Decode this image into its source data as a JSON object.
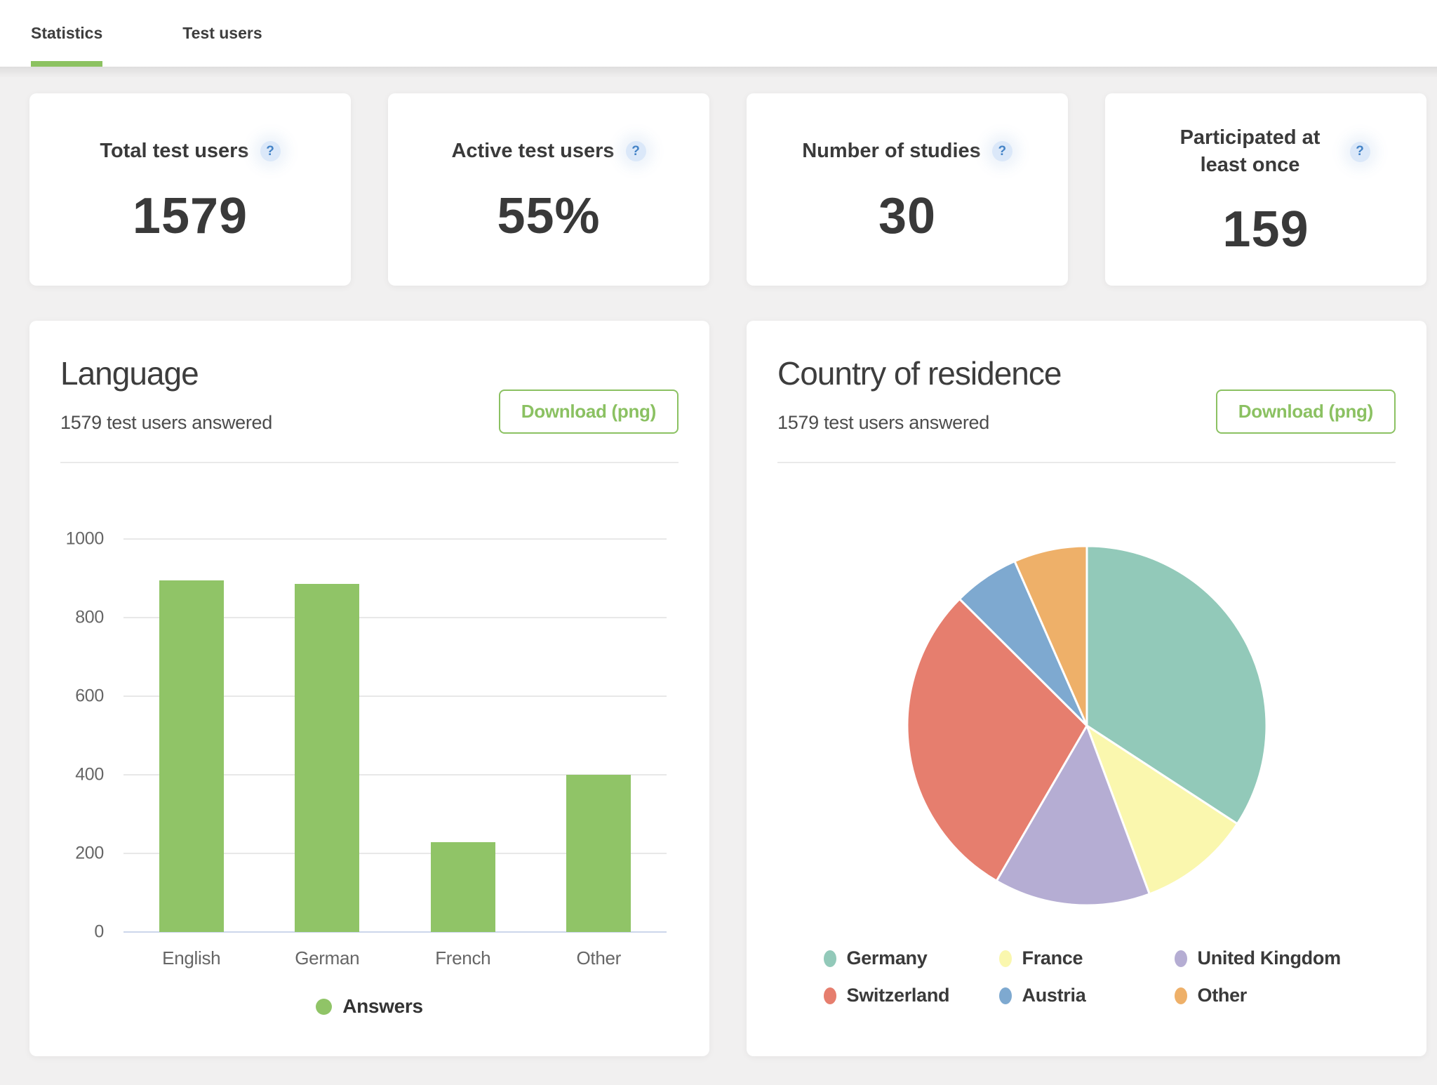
{
  "header": {
    "tabs": [
      {
        "label": "Statistics",
        "active": true
      },
      {
        "label": "Test users",
        "active": false
      }
    ]
  },
  "icons": {
    "help": "?"
  },
  "colors": {
    "accent_green": "#8cc261",
    "bar_green": "#90c467",
    "button_green": "#8bc162",
    "help_badge_bg": "#dbe8f9",
    "help_badge_fg": "#4584c7",
    "page_bg": "#f1f0f0",
    "axis_line": "#ccd6eb",
    "gridline": "#e8e8e8"
  },
  "stats_cards": [
    {
      "title": "Total test users",
      "value": "1579"
    },
    {
      "title": "Active test users",
      "value": "55%"
    },
    {
      "title": "Number of studies",
      "value": "30"
    },
    {
      "title": "Participated at least once",
      "value": "159"
    }
  ],
  "chart_data": [
    {
      "type": "bar",
      "title": "Language",
      "subtitle": "1579 test users answered",
      "download_label": "Download (png)",
      "categories": [
        "English",
        "German",
        "French",
        "Other"
      ],
      "series": [
        {
          "name": "Answers",
          "values": [
            895,
            886,
            228,
            400
          ]
        }
      ],
      "ylim": [
        0,
        1000
      ],
      "yticks": [
        0,
        200,
        400,
        600,
        800,
        1000
      ],
      "grid": true,
      "legend_position": "bottom",
      "bar_color": "#90c467"
    },
    {
      "type": "pie",
      "title": "Country of residence",
      "subtitle": "1579 test users answered",
      "download_label": "Download (png)",
      "labels": [
        "Germany",
        "France",
        "United Kingdom",
        "Switzerland",
        "Austria",
        "Other"
      ],
      "values": [
        540,
        160,
        222,
        459,
        94,
        104
      ],
      "colors": [
        "#92c9b9",
        "#faf7ae",
        "#b5add3",
        "#e67e6e",
        "#7ea9d0",
        "#eeb069"
      ],
      "start_angle_deg": 0,
      "direction": "clockwise",
      "legend_position": "bottom"
    }
  ]
}
